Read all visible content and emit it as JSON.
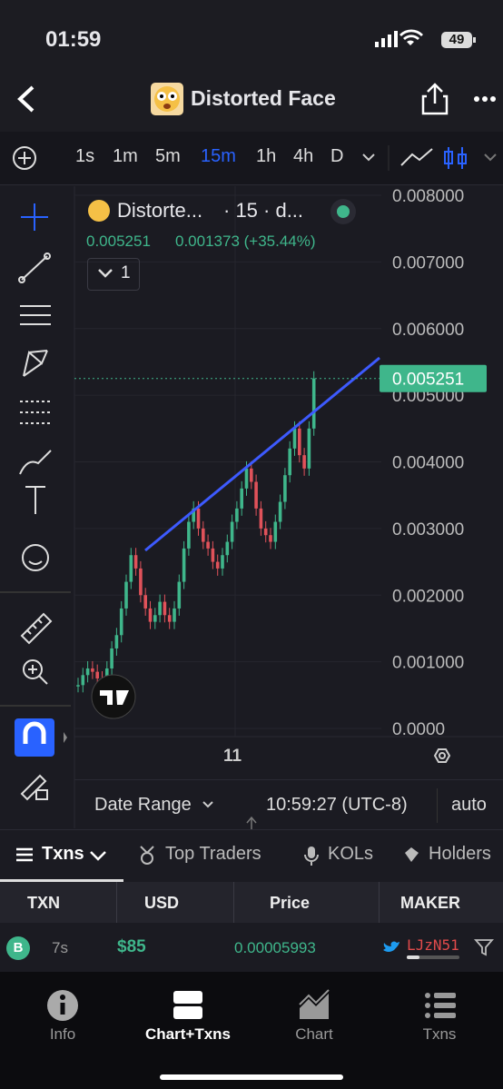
{
  "status": {
    "time": "01:59",
    "battery": "49"
  },
  "header": {
    "title": "Distorted Face"
  },
  "toolbar": {
    "intervals": [
      "1s",
      "1m",
      "5m",
      "15m",
      "1h",
      "4h",
      "D"
    ],
    "active": 3
  },
  "chart": {
    "type": "candlestick",
    "legend_name": "Distorte...",
    "legend_meta": "· 15 · d...",
    "legend_price": "0.005251",
    "legend_change": "0.001373 (+35.44%)",
    "indicator_count": "1",
    "ylim": [
      0,
      0.008
    ],
    "yticks": [
      {
        "value": 0.008,
        "label": "0.008000"
      },
      {
        "value": 0.007,
        "label": "0.007000"
      },
      {
        "value": 0.006,
        "label": "0.006000"
      },
      {
        "value": 0.005,
        "label": "0.005000"
      },
      {
        "value": 0.004,
        "label": "0.004000"
      },
      {
        "value": 0.003,
        "label": "0.003000"
      },
      {
        "value": 0.002,
        "label": "0.002000"
      },
      {
        "value": 0.001,
        "label": "0.001000"
      },
      {
        "value": 0,
        "label": "0.0000"
      }
    ],
    "closes": [
      0.00065,
      0.0008,
      0.0009,
      0.00085,
      0.00075,
      0.0007,
      0.0009,
      0.0012,
      0.0014,
      0.0018,
      0.0022,
      0.0026,
      0.0024,
      0.002,
      0.0018,
      0.0016,
      0.0017,
      0.0019,
      0.0017,
      0.0016,
      0.0018,
      0.0022,
      0.0027,
      0.0031,
      0.0033,
      0.003,
      0.0028,
      0.0027,
      0.0025,
      0.0024,
      0.0026,
      0.0028,
      0.0031,
      0.0033,
      0.0036,
      0.0039,
      0.0037,
      0.0033,
      0.003,
      0.0029,
      0.0028,
      0.0031,
      0.0034,
      0.0038,
      0.0042,
      0.0045,
      0.0041,
      0.0039,
      0.0045,
      0.005251
    ],
    "last_price": {
      "value": 0.005251,
      "label": "0.005251"
    },
    "x_label": "11"
  },
  "footer": {
    "date_range": "Date Range",
    "time": "10:59:27 (UTC-8)",
    "scale": "auto"
  },
  "tabs": [
    "Txns",
    "Top Traders",
    "KOLs",
    "Holders"
  ],
  "table": {
    "columns": [
      "TXN",
      "USD",
      "Price",
      "MAKER"
    ],
    "rows": [
      [
        "B",
        "7s",
        "$85",
        "0.00005993",
        "LJzN51"
      ]
    ]
  },
  "nav": [
    "Info",
    "Chart+Txns",
    "Chart",
    "Txns"
  ]
}
